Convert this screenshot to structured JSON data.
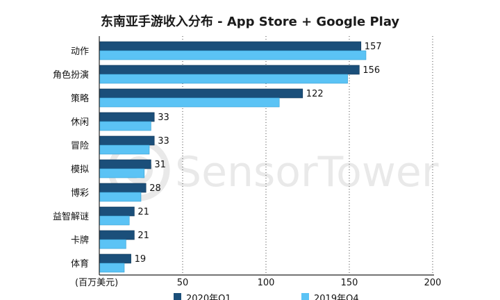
{
  "chart_data": {
    "type": "bar",
    "orientation": "horizontal",
    "title": "东南亚手游收入分布 - App Store + Google Play",
    "unit_label": "(百万美元)",
    "categories": [
      "动作",
      "角色扮演",
      "策略",
      "休闲",
      "冒险",
      "模拟",
      "博彩",
      "益智解谜",
      "卡牌",
      "体育"
    ],
    "series": [
      {
        "name": "2020年Q1",
        "color": "#1b4f7a",
        "values": [
          157,
          156,
          122,
          33,
          33,
          31,
          28,
          21,
          21,
          19
        ],
        "labels": [
          "157",
          "156",
          "122",
          "33",
          "33",
          "31",
          "28",
          "21",
          "21",
          "19"
        ]
      },
      {
        "name": "2019年Q4",
        "color": "#5bc3f5",
        "values": [
          160,
          149,
          108,
          31,
          30,
          27,
          25,
          18,
          16,
          15
        ]
      }
    ],
    "xticks": [
      "50",
      "100",
      "150",
      "200"
    ],
    "xlim": [
      0,
      200
    ],
    "grid": "vertical-dotted",
    "legend": "bottom"
  },
  "watermark": "SensorTower"
}
